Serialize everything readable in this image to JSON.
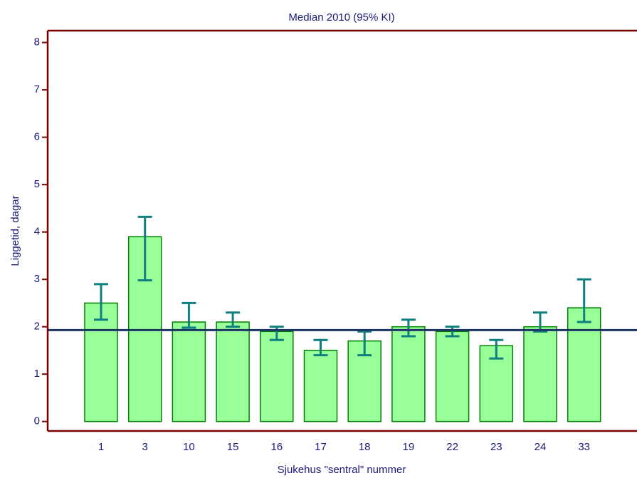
{
  "chart_data": {
    "type": "bar",
    "title": "Median 2010 (95% KI)",
    "x_label": "Sjukehus \"sentral\" nummer",
    "y_label": "Liggetid, dagar",
    "categories": [
      "1",
      "3",
      "10",
      "15",
      "16",
      "17",
      "18",
      "19",
      "22",
      "23",
      "24",
      "33"
    ],
    "values": [
      2.5,
      3.9,
      2.1,
      2.1,
      1.9,
      1.5,
      1.7,
      2.0,
      1.9,
      1.6,
      2.0,
      2.4
    ],
    "ci_low": [
      2.15,
      2.98,
      1.98,
      2.0,
      1.72,
      1.4,
      1.4,
      1.8,
      1.8,
      1.33,
      1.9,
      2.1
    ],
    "ci_high": [
      2.9,
      4.32,
      2.5,
      2.3,
      2.0,
      1.72,
      1.9,
      2.15,
      2.0,
      1.72,
      2.3,
      3.0
    ],
    "reference_line": 1.93,
    "color": "#99ff99",
    "edge_color": "#008000",
    "error_color": "#107f7f",
    "reference_color": "#1a3566",
    "axis_color": "#7a0000",
    "ylim": [
      -0.2,
      8.25
    ],
    "yticks": [
      0,
      1,
      2,
      3,
      4,
      5,
      6,
      7,
      8
    ]
  }
}
